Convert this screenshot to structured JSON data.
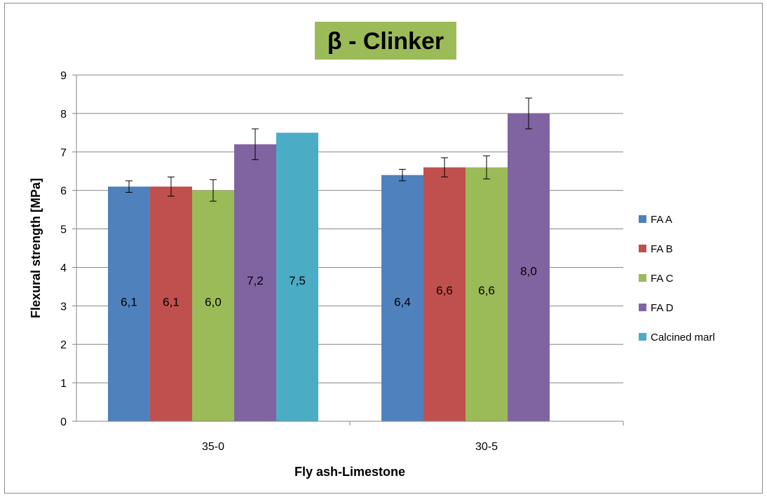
{
  "chart_data": {
    "type": "bar",
    "title": "β - Clinker",
    "xlabel": "Fly ash-Limestone",
    "ylabel": "Flexural strength [MPa]",
    "categories": [
      "35-0",
      "30-5"
    ],
    "ylim": [
      0,
      9
    ],
    "yticks": [
      0,
      1,
      2,
      3,
      4,
      5,
      6,
      7,
      8,
      9
    ],
    "grid": true,
    "legend_position": "right",
    "series": [
      {
        "name": "FA A",
        "color": "#4F81BD",
        "values": [
          6.1,
          6.4
        ],
        "labels": [
          "6,1",
          "6,4"
        ],
        "error": [
          0.15,
          0.15
        ]
      },
      {
        "name": "FA B",
        "color": "#C0504D",
        "values": [
          6.1,
          6.6
        ],
        "labels": [
          "6,1",
          "6,6"
        ],
        "error": [
          0.25,
          0.25
        ]
      },
      {
        "name": "FA C",
        "color": "#9BBB59",
        "values": [
          6.0,
          6.6
        ],
        "labels": [
          "6,0",
          "6,6"
        ],
        "error": [
          0.28,
          0.3
        ]
      },
      {
        "name": "FA D",
        "color": "#8064A2",
        "values": [
          7.2,
          8.0
        ],
        "labels": [
          "7,2",
          "8,0"
        ],
        "error": [
          0.4,
          0.4
        ]
      },
      {
        "name": "Calcined marl",
        "color": "#4BACC6",
        "values": [
          7.5,
          null
        ],
        "labels": [
          "7,5",
          null
        ],
        "error": [
          null,
          null
        ]
      }
    ],
    "title_background": "#9BBB59"
  }
}
